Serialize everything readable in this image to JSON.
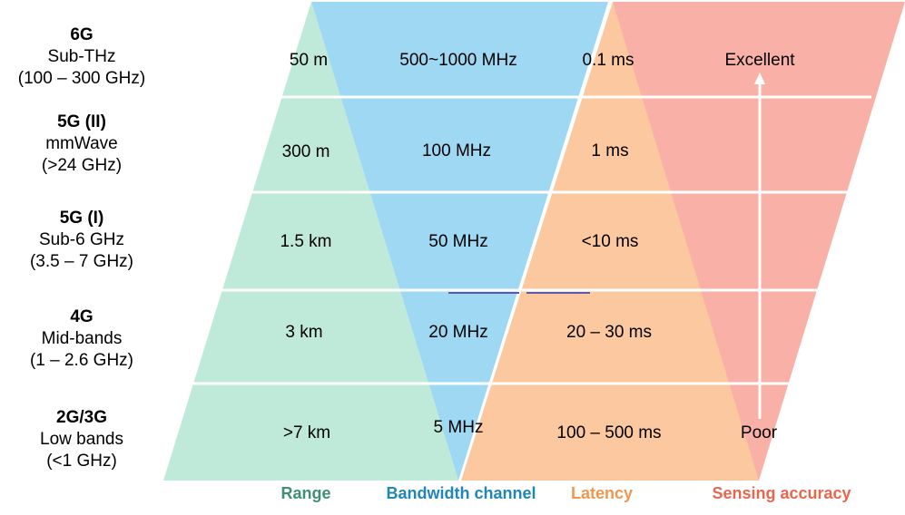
{
  "colors": {
    "range": "#bfead9",
    "bandwidth": "#9ed8f3",
    "latency": "#fcc89f",
    "sensing": "#f9b1a7",
    "range_label": "#3f8f72",
    "bandwidth_label": "#1f86b8",
    "latency_label": "#f1964f",
    "sensing_label": "#e8664e",
    "divider": "#ffffff",
    "arrow": "#ffffff",
    "accent_line": "#5a5aa8"
  },
  "generations": [
    {
      "name": "6G",
      "band": "Sub-THz",
      "freq": "(100 – 300 GHz)"
    },
    {
      "name": "5G (II)",
      "band": "mmWave",
      "freq": "(>24 GHz)"
    },
    {
      "name": "5G (I)",
      "band": "Sub-6 GHz",
      "freq": "(3.5 – 7 GHz)"
    },
    {
      "name": "4G",
      "band": "Mid-bands",
      "freq": "(1 – 2.6 GHz)"
    },
    {
      "name": "2G/3G",
      "band": "Low bands",
      "freq": "(<1 GHz)"
    }
  ],
  "range": [
    "50 m",
    "300 m",
    "1.5 km",
    "3 km",
    ">7 km"
  ],
  "bandwidth": [
    "500~1000 MHz",
    "100 MHz",
    "50 MHz",
    "20 MHz",
    "5 MHz"
  ],
  "latency": [
    "0.1 ms",
    "1 ms",
    "<10 ms",
    "20 – 30 ms",
    "100 – 500 ms"
  ],
  "sensing": {
    "top": "Excellent",
    "bottom": "Poor"
  },
  "legend": {
    "range": "Range",
    "bandwidth": "Bandwidth channel",
    "latency": "Latency",
    "sensing": "Sensing accuracy"
  }
}
